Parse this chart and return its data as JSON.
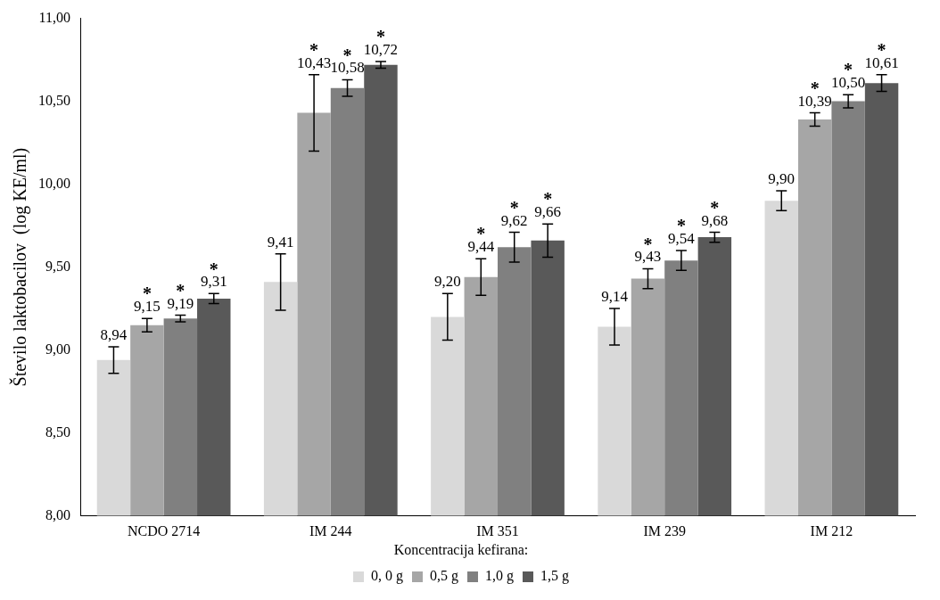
{
  "chart_data": {
    "type": "bar",
    "ylabel": "Število laktobacilov  (log KE/ml)",
    "legend_title": "Koncentracija kefirana:",
    "categories": [
      "NCDO 2714",
      "IM 244",
      "IM 351",
      "IM 239",
      "IM 212"
    ],
    "ylim": [
      8,
      11
    ],
    "yticks": [
      {
        "value": 8,
        "label": "8,00"
      },
      {
        "value": 8.5,
        "label": "8,50"
      },
      {
        "value": 9,
        "label": "9,00"
      },
      {
        "value": 9.5,
        "label": "9,50"
      },
      {
        "value": 10,
        "label": "10,00"
      },
      {
        "value": 10.5,
        "label": "10,50"
      },
      {
        "value": 11,
        "label": "11,00"
      }
    ],
    "grid": false,
    "legend": "bottom",
    "annotations": [
      "*",
      "*",
      "*",
      "*",
      "*",
      "*",
      "*",
      "*",
      "*",
      "*",
      "*",
      "*",
      "*",
      "*",
      "*"
    ],
    "series": [
      {
        "name": "0, 0 g",
        "color": "#d9d9d9",
        "values": [
          8.94,
          9.41,
          9.2,
          9.14,
          9.9
        ],
        "errors": [
          0.08,
          0.17,
          0.14,
          0.11,
          0.06
        ],
        "value_labels": [
          "8,94",
          "9,41",
          "9,20",
          "9,14",
          "9,90"
        ]
      },
      {
        "name": "0,5 g",
        "color": "#a6a6a6",
        "values": [
          9.15,
          10.43,
          9.44,
          9.43,
          10.39
        ],
        "errors": [
          0.04,
          0.23,
          0.11,
          0.06,
          0.04
        ],
        "value_labels": [
          "9,15",
          "10,43",
          "9,44",
          "9,43",
          "10,39"
        ]
      },
      {
        "name": "1,0 g",
        "color": "#808080",
        "values": [
          9.19,
          10.58,
          9.62,
          9.54,
          10.5
        ],
        "errors": [
          0.02,
          0.05,
          0.09,
          0.06,
          0.04
        ],
        "value_labels": [
          "9,19",
          "10,58",
          "9,62",
          "9,54",
          "10,50"
        ]
      },
      {
        "name": "1,5 g",
        "color": "#595959",
        "values": [
          9.31,
          10.72,
          9.66,
          9.68,
          10.61
        ],
        "errors": [
          0.03,
          0.02,
          0.1,
          0.03,
          0.05
        ],
        "value_labels": [
          "9,31",
          "10,72",
          "9,66",
          "9,68",
          "10,61"
        ]
      }
    ]
  }
}
